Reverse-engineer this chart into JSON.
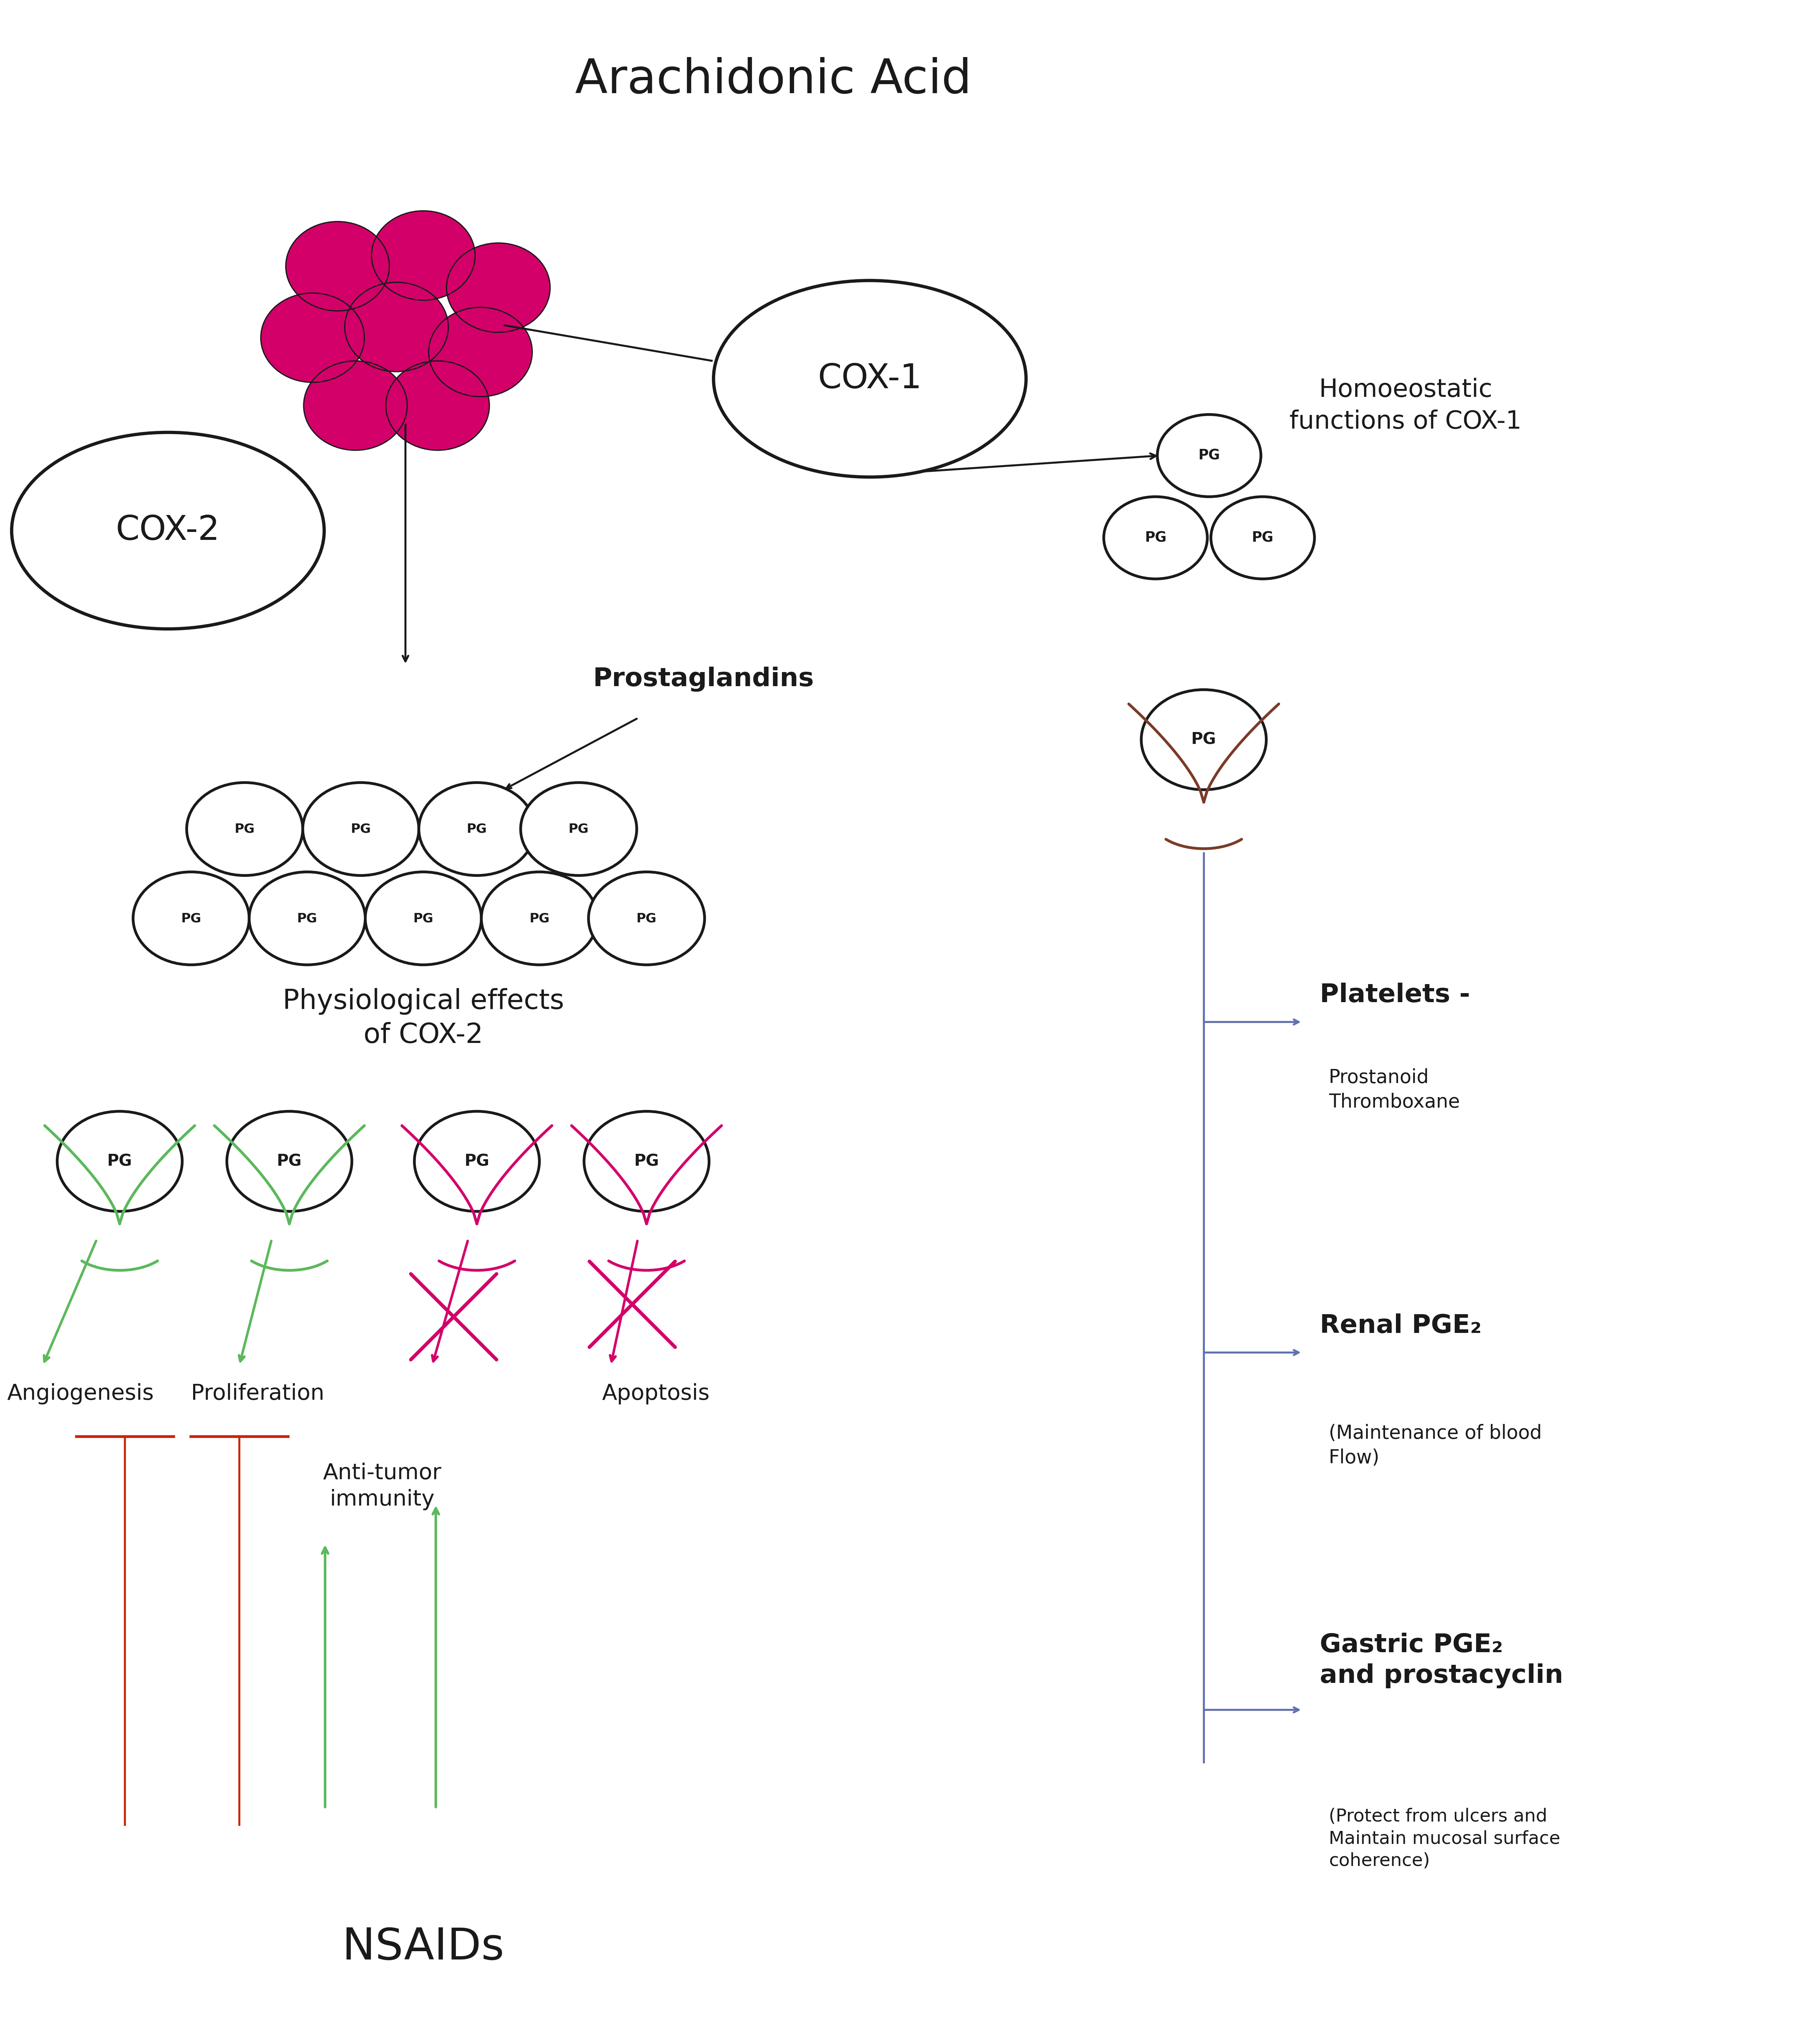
{
  "bg_color": "#ffffff",
  "fig_width": 49.53,
  "fig_height": 56.48,
  "title_text": "Arachidonic Acid",
  "cox1_label": "COX-1",
  "cox2_label": "COX-2",
  "prostaglandins_label": "Prostaglandins",
  "homoeostatic_label": "Homoeostatic\nfunctions of COX-1",
  "physiological_label": "Physiological effects\nof COX-2",
  "nsaids_label": "NSAIDs",
  "angiogenesis_label": "Angiogenesis",
  "proliferation_label": "Proliferation",
  "antitumor_label": "Anti-tumor\nimmunity",
  "apoptosis_label": "Apoptosis",
  "platelets_label": "Platelets -",
  "platelets_sub": "Prostanoid\nThromboxane",
  "renal_label": "Renal PGE₂",
  "renal_sub": "(Maintenance of blood\nFlow)",
  "gastric_label": "Gastric PGE₂\nand prostacyclin",
  "gastric_sub": "(Protect from ulcers and\nMaintain mucosal surface\ncoherence)",
  "magenta": "#D4006A",
  "green": "#5CB85C",
  "red": "#CC2200",
  "pink": "#D4006A",
  "blue": "#6070B0",
  "brown": "#7B3B28",
  "black": "#1a1a1a"
}
